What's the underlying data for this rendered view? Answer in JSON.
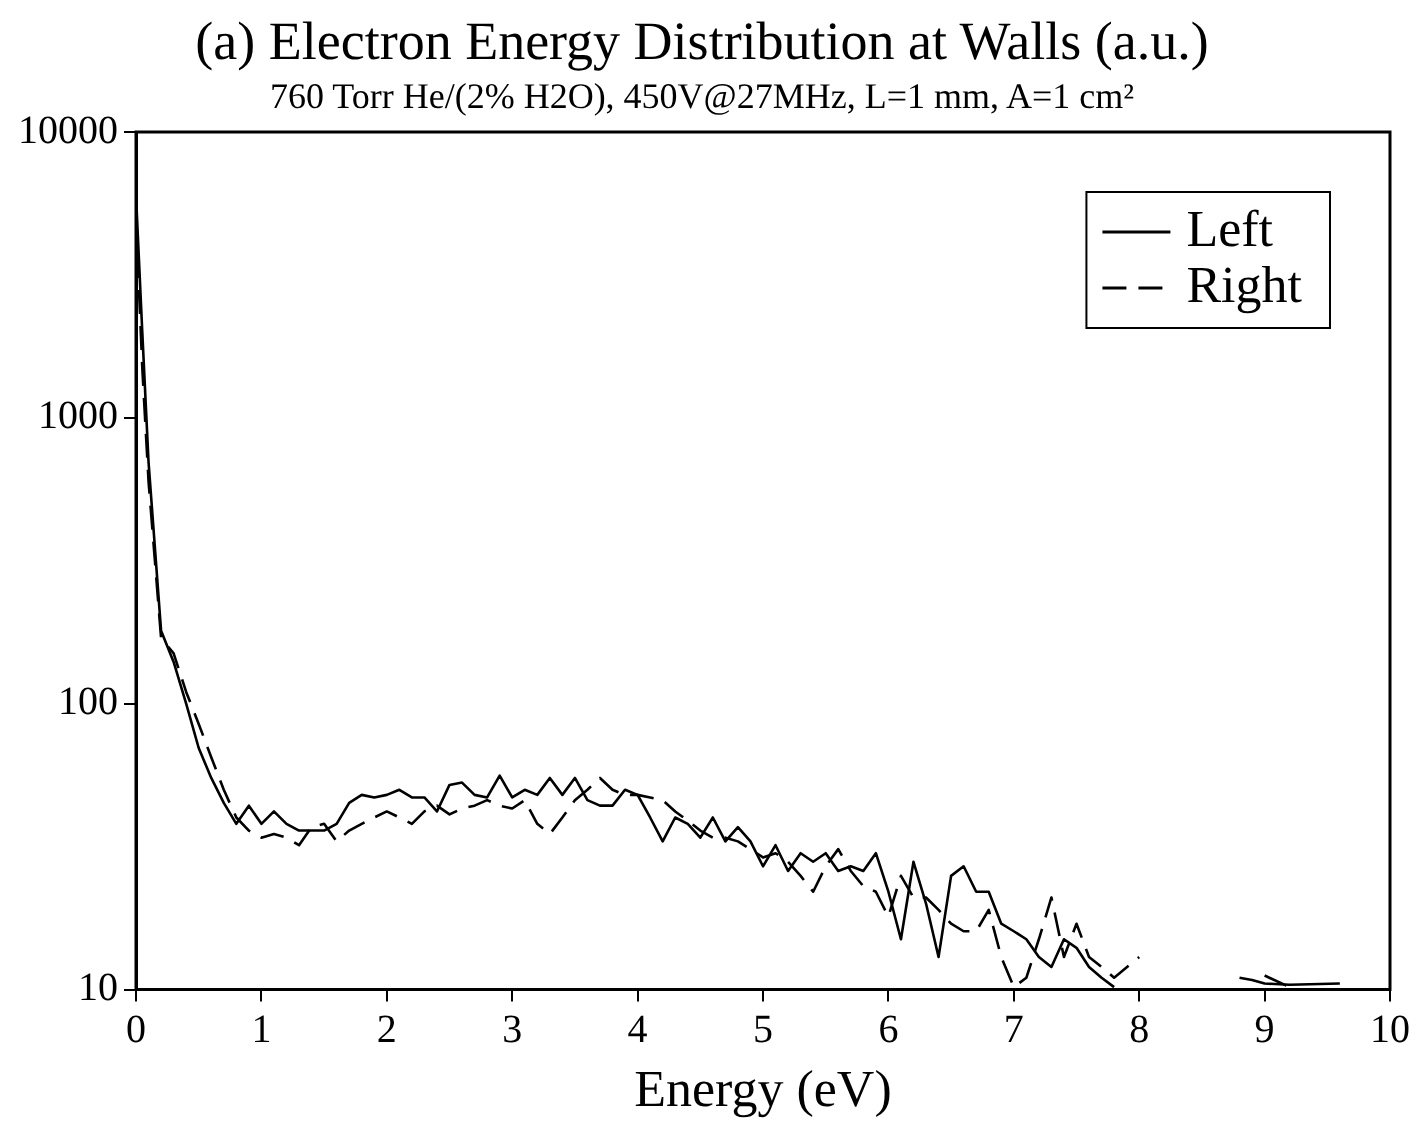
{
  "chart_data": {
    "type": "line",
    "title": "(a) Electron Energy Distribution at Walls (a.u.)",
    "subtitle": "760 Torr He/(2% H2O), 450V@27MHz, L=1 mm, A=1 cm²",
    "xlabel": "Energy (eV)",
    "x": [
      0,
      0.05,
      0.1,
      0.2,
      0.3,
      0.4,
      0.5,
      0.6,
      0.7,
      0.8,
      0.9,
      1.0,
      1.1,
      1.2,
      1.3,
      1.4,
      1.5,
      1.6,
      1.7,
      1.8,
      1.9,
      2.0,
      2.1,
      2.2,
      2.3,
      2.4,
      2.5,
      2.6,
      2.7,
      2.8,
      2.9,
      3.0,
      3.1,
      3.2,
      3.3,
      3.4,
      3.5,
      3.6,
      3.7,
      3.8,
      3.9,
      4.0,
      4.1,
      4.2,
      4.3,
      4.4,
      4.5,
      4.6,
      4.7,
      4.8,
      4.9,
      5.0,
      5.1,
      5.2,
      5.3,
      5.4,
      5.5,
      5.6,
      5.7,
      5.8,
      5.9,
      6.0,
      6.1,
      6.2,
      6.3,
      6.4,
      6.5,
      6.6,
      6.7,
      6.8,
      6.9,
      7.0,
      7.1,
      7.2,
      7.3,
      7.4,
      7.5,
      7.6,
      7.7,
      7.8,
      8.0,
      8.4,
      8.8,
      8.9,
      9.0,
      9.2,
      9.6
    ],
    "series": [
      {
        "name": "Left",
        "color": "#000000",
        "line_style": "solid",
        "values": [
          6000,
          2000,
          700,
          180,
          140,
          100,
          70,
          55,
          45,
          38,
          44,
          38,
          42,
          38,
          36,
          36,
          36,
          38,
          45,
          48,
          47,
          48,
          50,
          47,
          47,
          42,
          52,
          53,
          48,
          47,
          56,
          47,
          50,
          48,
          55,
          48,
          55,
          46,
          44,
          44,
          50,
          48,
          40,
          33,
          40,
          38,
          34,
          40,
          33,
          37,
          33,
          27,
          32,
          26,
          30,
          28,
          30,
          26,
          27,
          26,
          30,
          22,
          15,
          28,
          20,
          13,
          25,
          27,
          22,
          22,
          17,
          16,
          15,
          13,
          12,
          15,
          14,
          12,
          11,
          10.2,
          null,
          null,
          11,
          10.8,
          10.5,
          10.4,
          10.5
        ]
      },
      {
        "name": "Right",
        "color": "#000000",
        "line_style": "dashed",
        "values": [
          5000,
          1500,
          600,
          170,
          150,
          110,
          85,
          65,
          50,
          40,
          36,
          34,
          35,
          34,
          32,
          37,
          38,
          33,
          36,
          38,
          40,
          42,
          40,
          38,
          42,
          44,
          41,
          43,
          44,
          46,
          44,
          43,
          46,
          38,
          35,
          40,
          46,
          50,
          55,
          50,
          48,
          48,
          47,
          46,
          42,
          39,
          36,
          34,
          34,
          33,
          31,
          29,
          30,
          28,
          25,
          22,
          27,
          31,
          26,
          23,
          22,
          18,
          25,
          21,
          21,
          19,
          17,
          16,
          16,
          19,
          13,
          10.2,
          11,
          15,
          21,
          13,
          17,
          13,
          12,
          11,
          13,
          null,
          null,
          null,
          11.2,
          10.2,
          null
        ]
      }
    ],
    "xlim": [
      0,
      10
    ],
    "xticks": [
      0,
      1,
      2,
      3,
      4,
      5,
      6,
      7,
      8,
      9,
      10
    ],
    "ylim": [
      10,
      10000
    ],
    "yticks": [
      10,
      100,
      1000,
      10000
    ],
    "log": "y",
    "grid": false,
    "legend": "top right",
    "marker": "none"
  }
}
